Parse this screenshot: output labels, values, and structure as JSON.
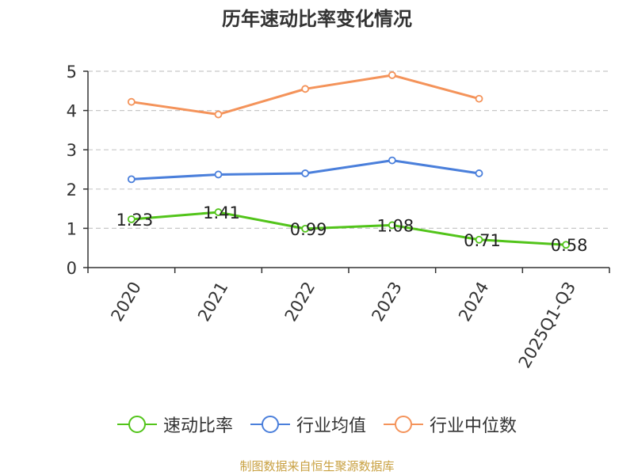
{
  "chart_data": {
    "type": "line",
    "title": "历年速动比率变化情况",
    "categories": [
      "2020",
      "2021",
      "2022",
      "2023",
      "2024",
      "2025Q1-Q3"
    ],
    "ylim": [
      0,
      5
    ],
    "yticks": [
      0,
      1,
      2,
      3,
      4,
      5
    ],
    "grid": true,
    "legend_position": "bottom",
    "series": [
      {
        "name": "速动比率",
        "color": "#52c41a",
        "values": [
          1.23,
          1.41,
          0.99,
          1.08,
          0.71,
          0.58
        ],
        "labels": [
          "1.23",
          "1.41",
          "0.99",
          "1.08",
          "0.71",
          "0.58"
        ]
      },
      {
        "name": "行业均值",
        "color": "#4a7fdb",
        "values": [
          2.25,
          2.37,
          2.4,
          2.73,
          2.4,
          null
        ]
      },
      {
        "name": "行业中位数",
        "color": "#f4935a",
        "values": [
          4.22,
          3.9,
          4.55,
          4.9,
          4.3,
          null
        ]
      }
    ]
  },
  "source": "制图数据来自恒生聚源数据库"
}
